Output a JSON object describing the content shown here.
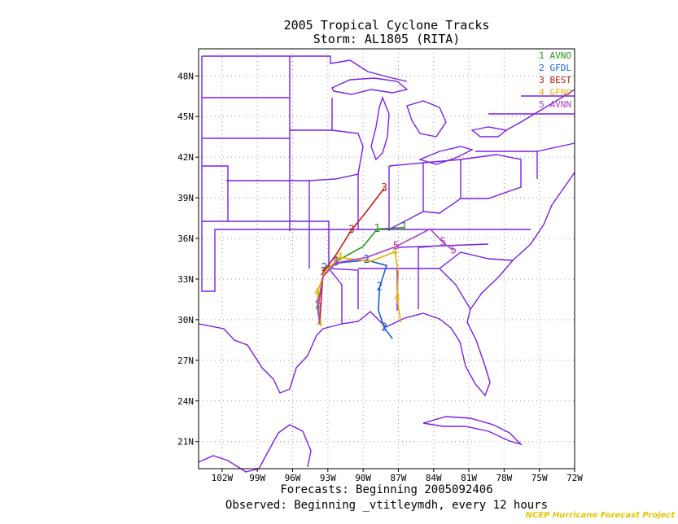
{
  "title": "2005 Tropical Cyclone Tracks",
  "subtitle": "Storm: AL1805 (RITA)",
  "footer": {
    "forecasts": "Forecasts: Beginning 2005092406",
    "observed": "Observed: Beginning _vtitleymdh, every 12 hours",
    "credit": "NCEP Hurricane Forecast Project"
  },
  "colors": {
    "map_lines": "#7c1ee8",
    "grid": "#999999",
    "AVNO": "#2a9a20",
    "GFDL": "#1c5cd8",
    "BEST": "#c02010",
    "GFNO": "#e8b000",
    "AVNN": "#b040c8"
  },
  "axes": {
    "lon_range": [
      -104,
      -72
    ],
    "lat_range": [
      19,
      50
    ],
    "lon_ticks": [
      {
        "value": -102,
        "label": "102W"
      },
      {
        "value": -99,
        "label": "99W"
      },
      {
        "value": -96,
        "label": "96W"
      },
      {
        "value": -93,
        "label": "93W"
      },
      {
        "value": -90,
        "label": "90W"
      },
      {
        "value": -87,
        "label": "87W"
      },
      {
        "value": -84,
        "label": "84W"
      },
      {
        "value": -81,
        "label": "81W"
      },
      {
        "value": -78,
        "label": "78W"
      },
      {
        "value": -75,
        "label": "75W"
      },
      {
        "value": -72,
        "label": "72W"
      }
    ],
    "lat_ticks": [
      {
        "value": 21,
        "label": "21N"
      },
      {
        "value": 24,
        "label": "24N"
      },
      {
        "value": 27,
        "label": "27N"
      },
      {
        "value": 30,
        "label": "30N"
      },
      {
        "value": 33,
        "label": "33N"
      },
      {
        "value": 36,
        "label": "36N"
      },
      {
        "value": 39,
        "label": "39N"
      },
      {
        "value": 42,
        "label": "42N"
      },
      {
        "value": 45,
        "label": "45N"
      },
      {
        "value": 48,
        "label": "48N"
      }
    ]
  },
  "legend": [
    {
      "label": "1 AVNO",
      "model": "AVNO"
    },
    {
      "label": "2 GFDL",
      "model": "GFDL"
    },
    {
      "label": "3 BEST",
      "model": "BEST"
    },
    {
      "label": "4 GFNO",
      "model": "GFNO"
    },
    {
      "label": "5 AVNN",
      "model": "AVNN"
    }
  ],
  "chart_data": {
    "type": "map-tracks",
    "tracks": [
      {
        "model": "AVNO",
        "marker": "1",
        "points": [
          [
            -93.7,
            29.7
          ],
          [
            -93.9,
            31.0
          ],
          [
            -93.4,
            33.2
          ],
          [
            -92.3,
            34.3
          ],
          [
            -90.0,
            35.4
          ],
          [
            -88.8,
            36.7
          ],
          [
            -86.5,
            36.8
          ]
        ]
      },
      {
        "model": "GFDL",
        "marker": "2",
        "points": [
          [
            -87.5,
            28.6
          ],
          [
            -88.2,
            29.4
          ],
          [
            -88.7,
            30.7
          ],
          [
            -88.6,
            32.4
          ],
          [
            -88.0,
            34.0
          ],
          [
            -89.7,
            34.4
          ],
          [
            -92.0,
            34.2
          ],
          [
            -93.3,
            33.8
          ]
        ]
      },
      {
        "model": "BEST",
        "marker": "3",
        "points": [
          [
            -93.7,
            29.7
          ],
          [
            -93.4,
            33.5
          ],
          [
            -92.3,
            34.8
          ],
          [
            -91.0,
            36.6
          ],
          [
            -89.7,
            38.0
          ],
          [
            -88.2,
            39.7
          ]
        ]
      },
      {
        "model": "GFNO",
        "marker": "4",
        "points": [
          [
            -86.8,
            29.8
          ],
          [
            -87.1,
            31.6
          ],
          [
            -87.0,
            33.5
          ],
          [
            -87.3,
            35.0
          ],
          [
            -89.4,
            34.3
          ],
          [
            -92.0,
            34.6
          ],
          [
            -93.3,
            33.5
          ],
          [
            -93.9,
            32.0
          ],
          [
            -93.7,
            29.7
          ]
        ]
      },
      {
        "model": "AVNN",
        "marker": "5",
        "points": [
          [
            -93.7,
            29.7
          ],
          [
            -93.8,
            31.1
          ],
          [
            -93.4,
            33.2
          ],
          [
            -92.3,
            34.2
          ],
          [
            -89.7,
            34.6
          ],
          [
            -87.2,
            35.4
          ],
          [
            -84.3,
            36.7
          ],
          [
            -83.2,
            35.7
          ],
          [
            -82.3,
            35.1
          ]
        ]
      }
    ]
  }
}
